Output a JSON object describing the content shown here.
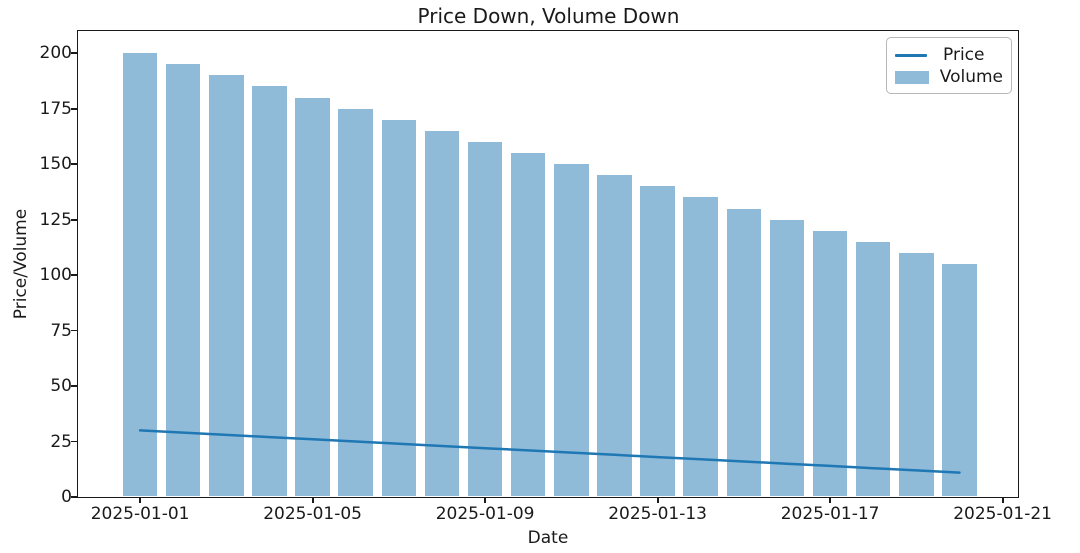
{
  "chart_data": {
    "type": "combo",
    "title": "Price Down, Volume Down",
    "xlabel": "Date",
    "ylabel": "Price/Volume",
    "x": [
      "2025-01-01",
      "2025-01-02",
      "2025-01-03",
      "2025-01-04",
      "2025-01-05",
      "2025-01-06",
      "2025-01-07",
      "2025-01-08",
      "2025-01-09",
      "2025-01-10",
      "2025-01-11",
      "2025-01-12",
      "2025-01-13",
      "2025-01-14",
      "2025-01-15",
      "2025-01-16",
      "2025-01-17",
      "2025-01-18",
      "2025-01-19",
      "2025-01-20"
    ],
    "series": [
      {
        "name": "Price",
        "type": "line",
        "color": "#1f77b4",
        "values": [
          30,
          29,
          28,
          27,
          26,
          25,
          24,
          23,
          22,
          21,
          20,
          19,
          18,
          17,
          16,
          15,
          14,
          13,
          12,
          11
        ]
      },
      {
        "name": "Volume",
        "type": "bar",
        "color": "#1f77b4",
        "alpha": 0.5,
        "values": [
          200,
          195,
          190,
          185,
          180,
          175,
          170,
          165,
          160,
          155,
          150,
          145,
          140,
          135,
          130,
          125,
          120,
          115,
          110,
          105
        ]
      }
    ],
    "y_ticks": [
      0,
      25,
      50,
      75,
      100,
      125,
      150,
      175,
      200
    ],
    "x_ticks": [
      {
        "label": "2025-01-01",
        "day": 0
      },
      {
        "label": "2025-01-05",
        "day": 4
      },
      {
        "label": "2025-01-09",
        "day": 8
      },
      {
        "label": "2025-01-13",
        "day": 12
      },
      {
        "label": "2025-01-17",
        "day": 16
      },
      {
        "label": "2025-01-21",
        "day": 20
      }
    ],
    "ylim": [
      0,
      210
    ],
    "bar_width_days": 0.8,
    "grid": false,
    "legend": {
      "position": "upper right",
      "entries": [
        "Price",
        "Volume"
      ]
    },
    "colors": {
      "axis": "#1a1a1a",
      "background": "#ffffff",
      "legend_border": "#b8b8b8"
    }
  }
}
